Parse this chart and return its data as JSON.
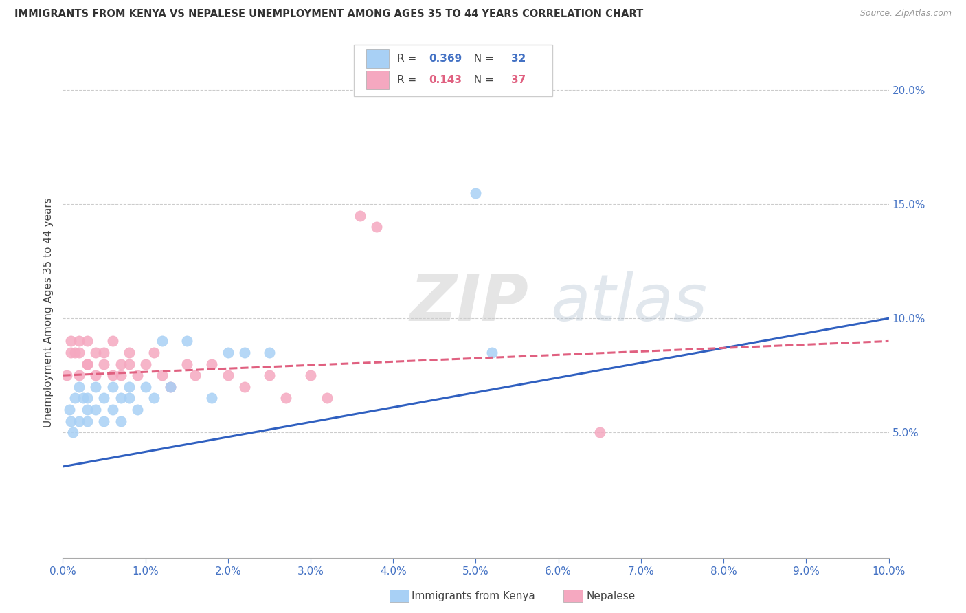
{
  "title": "IMMIGRANTS FROM KENYA VS NEPALESE UNEMPLOYMENT AMONG AGES 35 TO 44 YEARS CORRELATION CHART",
  "source": "Source: ZipAtlas.com",
  "ylabel": "Unemployment Among Ages 35 to 44 years",
  "xlim": [
    0.0,
    0.1
  ],
  "ylim": [
    -0.005,
    0.21
  ],
  "xticks": [
    0.0,
    0.01,
    0.02,
    0.03,
    0.04,
    0.05,
    0.06,
    0.07,
    0.08,
    0.09,
    0.1
  ],
  "yticks": [
    0.05,
    0.1,
    0.15,
    0.2
  ],
  "ytick_labels": [
    "5.0%",
    "10.0%",
    "15.0%",
    "20.0%"
  ],
  "xtick_labels": [
    "0.0%",
    "1.0%",
    "2.0%",
    "3.0%",
    "4.0%",
    "5.0%",
    "6.0%",
    "7.0%",
    "8.0%",
    "9.0%",
    "10.0%"
  ],
  "kenya_R": 0.369,
  "kenya_N": 32,
  "nepalese_R": 0.143,
  "nepalese_N": 37,
  "kenya_color": "#A8D0F5",
  "nepalese_color": "#F5A8C0",
  "kenya_line_color": "#3060C0",
  "nepalese_line_color": "#E06080",
  "watermark_zip": "ZIP",
  "watermark_atlas": "atlas",
  "background_color": "#FFFFFF",
  "kenya_x": [
    0.0008,
    0.001,
    0.0012,
    0.0015,
    0.002,
    0.002,
    0.0025,
    0.003,
    0.003,
    0.003,
    0.004,
    0.004,
    0.005,
    0.005,
    0.006,
    0.006,
    0.007,
    0.007,
    0.008,
    0.008,
    0.009,
    0.01,
    0.011,
    0.012,
    0.013,
    0.015,
    0.018,
    0.02,
    0.022,
    0.025,
    0.05,
    0.052
  ],
  "kenya_y": [
    0.06,
    0.055,
    0.05,
    0.065,
    0.055,
    0.07,
    0.065,
    0.06,
    0.065,
    0.055,
    0.07,
    0.06,
    0.055,
    0.065,
    0.07,
    0.06,
    0.065,
    0.055,
    0.07,
    0.065,
    0.06,
    0.07,
    0.065,
    0.09,
    0.07,
    0.09,
    0.065,
    0.085,
    0.085,
    0.085,
    0.155,
    0.085
  ],
  "nepalese_x": [
    0.0005,
    0.001,
    0.001,
    0.0015,
    0.002,
    0.002,
    0.002,
    0.003,
    0.003,
    0.003,
    0.004,
    0.004,
    0.005,
    0.005,
    0.006,
    0.006,
    0.007,
    0.007,
    0.008,
    0.008,
    0.009,
    0.01,
    0.011,
    0.012,
    0.013,
    0.015,
    0.016,
    0.018,
    0.02,
    0.022,
    0.025,
    0.027,
    0.03,
    0.032,
    0.036,
    0.038,
    0.065
  ],
  "nepalese_y": [
    0.075,
    0.085,
    0.09,
    0.085,
    0.09,
    0.085,
    0.075,
    0.08,
    0.09,
    0.08,
    0.085,
    0.075,
    0.085,
    0.08,
    0.09,
    0.075,
    0.08,
    0.075,
    0.085,
    0.08,
    0.075,
    0.08,
    0.085,
    0.075,
    0.07,
    0.08,
    0.075,
    0.08,
    0.075,
    0.07,
    0.075,
    0.065,
    0.075,
    0.065,
    0.145,
    0.14,
    0.05
  ],
  "kenya_trend_x": [
    0.0,
    0.1
  ],
  "kenya_trend_y": [
    0.035,
    0.1
  ],
  "nepalese_trend_x": [
    0.0,
    0.1
  ],
  "nepalese_trend_y": [
    0.075,
    0.09
  ]
}
